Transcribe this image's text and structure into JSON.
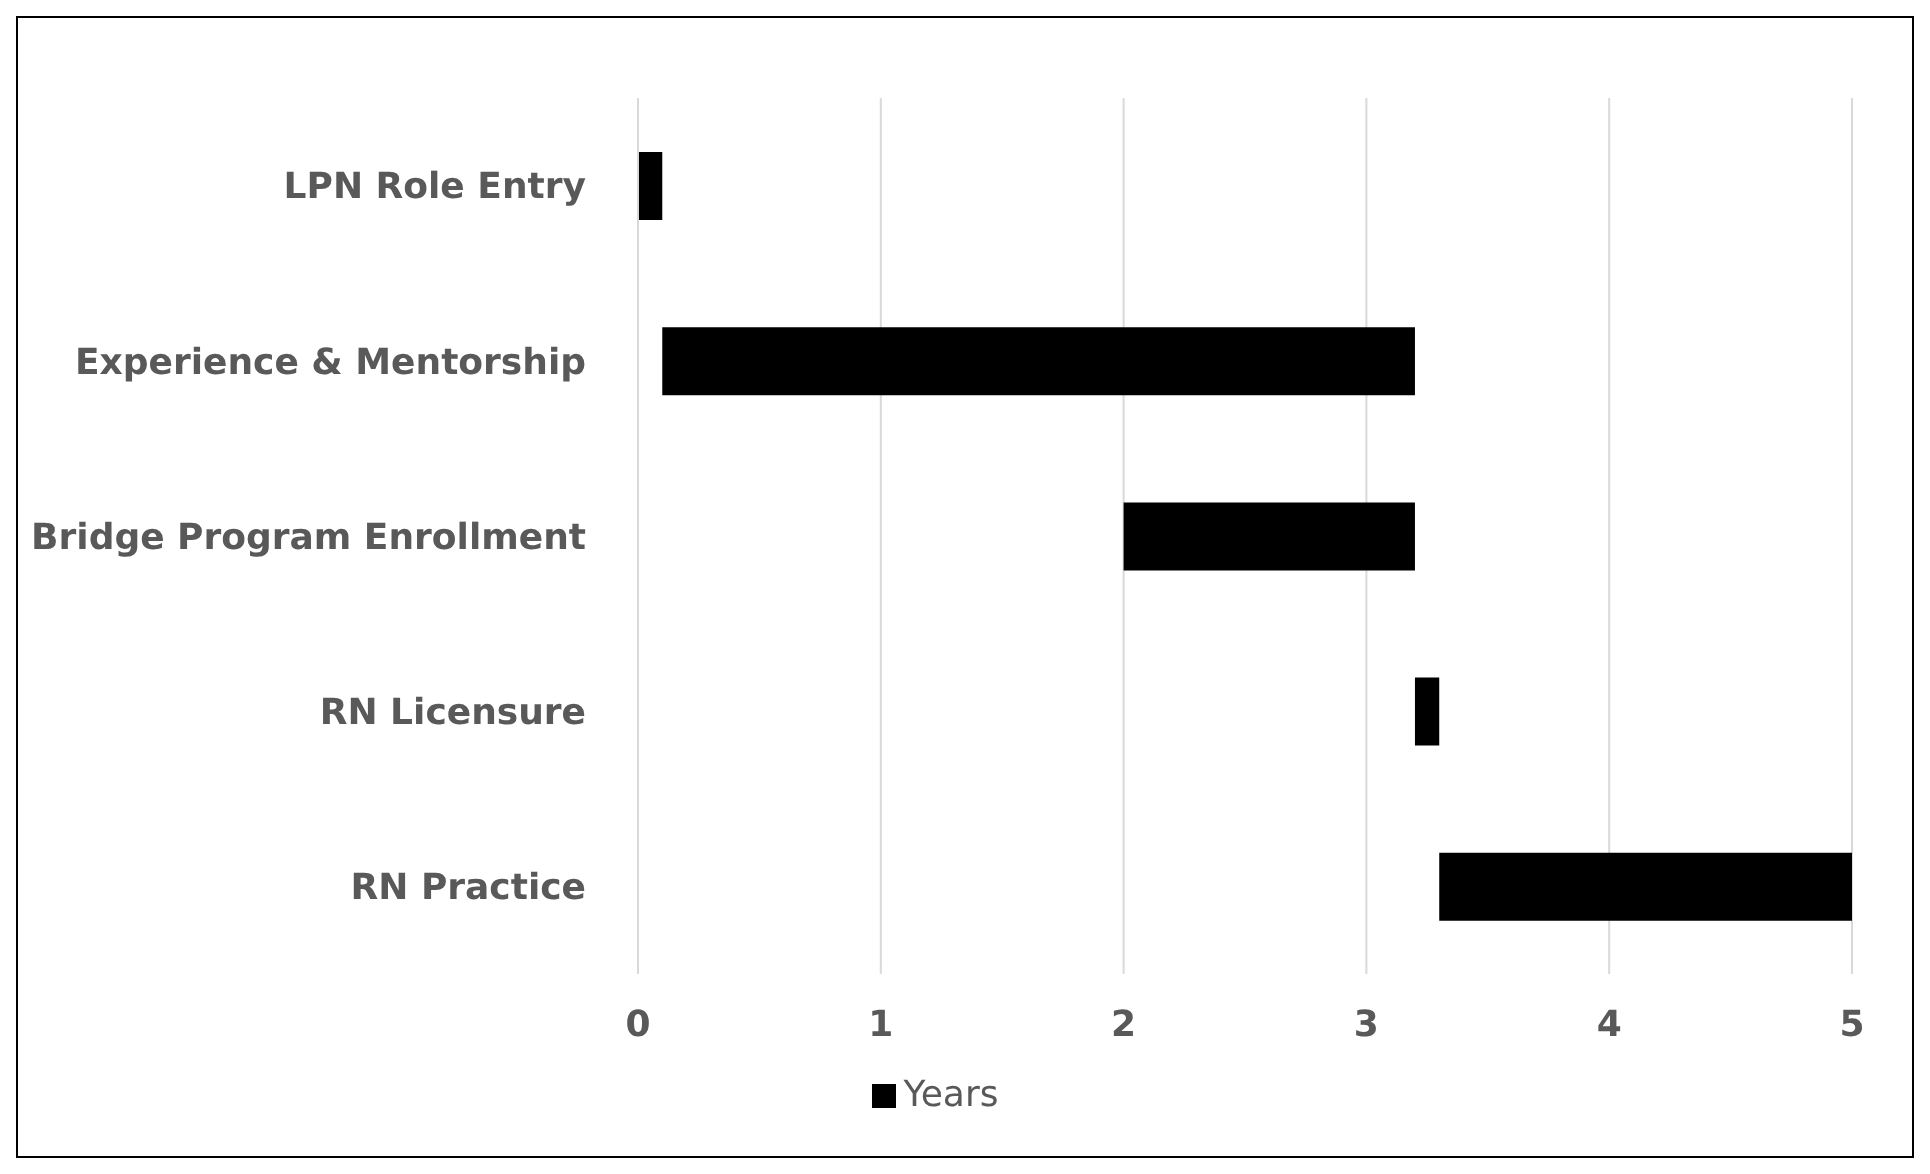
{
  "chart_data": {
    "type": "bar",
    "orientation": "horizontal",
    "categories": [
      "LPN Role Entry",
      "Experience & Mentorship",
      "Bridge Program Enrollment",
      "RN Licensure",
      "RN Practice"
    ],
    "series": [
      {
        "name": "Years",
        "color": "#000000",
        "values": [
          0.1,
          3.1,
          1.2,
          0.1,
          1.7
        ],
        "base": [
          0,
          0.1,
          2,
          3.2,
          3.3
        ]
      }
    ],
    "xlim": [
      0,
      5
    ],
    "xticks": [
      0,
      1,
      2,
      3,
      4,
      5
    ],
    "grid": "x",
    "legend": "bottom"
  }
}
